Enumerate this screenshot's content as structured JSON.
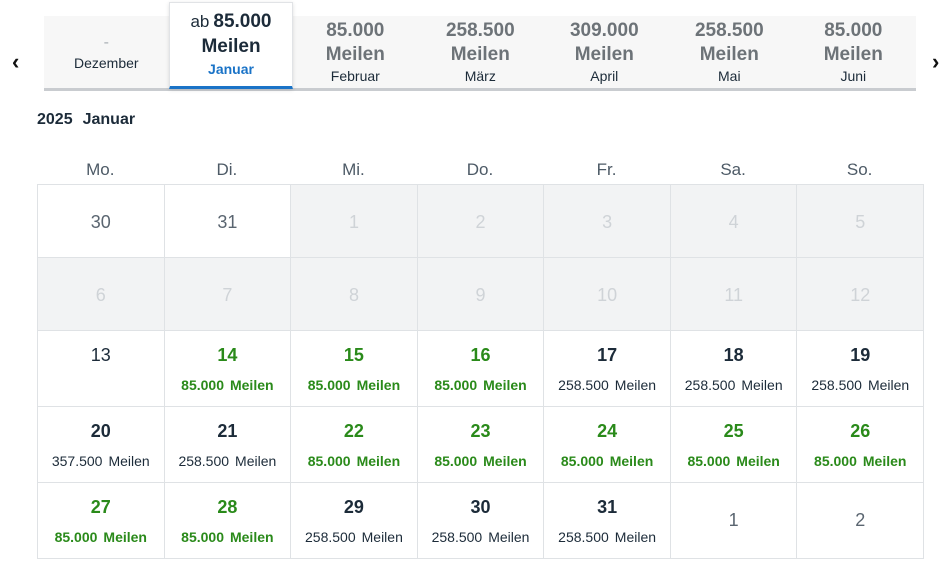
{
  "nav": {
    "prev_icon": "chevron-left-icon",
    "next_icon": "chevron-right-icon"
  },
  "tabs": {
    "dec": {
      "dash": "-",
      "month": "Dezember"
    },
    "jan": {
      "from": "ab",
      "price": "85.000",
      "unit": "Meilen",
      "month": "Januar"
    },
    "feb": {
      "price": "85.000",
      "unit": "Meilen",
      "month": "Februar"
    },
    "mar": {
      "price": "258.500",
      "unit": "Meilen",
      "month": "März"
    },
    "apr": {
      "price": "309.000",
      "unit": "Meilen",
      "month": "April"
    },
    "may": {
      "price": "258.500",
      "unit": "Meilen",
      "month": "Mai"
    },
    "jun": {
      "price": "85.000",
      "unit": "Meilen",
      "month": "Juni"
    }
  },
  "heading": {
    "year": "2025",
    "month": "Januar"
  },
  "weekdays": [
    "Mo.",
    "Di.",
    "Mi.",
    "Do.",
    "Fr.",
    "Sa.",
    "So."
  ],
  "unit": "Meilen",
  "calendar": {
    "r1": [
      "30",
      "31",
      "1",
      "2",
      "3",
      "4",
      "5"
    ],
    "r2": [
      "6",
      "7",
      "8",
      "9",
      "10",
      "11",
      "12"
    ],
    "r3": [
      {
        "day": "13"
      },
      {
        "day": "14",
        "miles": "85.000"
      },
      {
        "day": "15",
        "miles": "85.000"
      },
      {
        "day": "16",
        "miles": "85.000"
      },
      {
        "day": "17",
        "miles": "258.500"
      },
      {
        "day": "18",
        "miles": "258.500"
      },
      {
        "day": "19",
        "miles": "258.500"
      }
    ],
    "r4": [
      {
        "day": "20",
        "miles": "357.500"
      },
      {
        "day": "21",
        "miles": "258.500"
      },
      {
        "day": "22",
        "miles": "85.000"
      },
      {
        "day": "23",
        "miles": "85.000"
      },
      {
        "day": "24",
        "miles": "85.000"
      },
      {
        "day": "25",
        "miles": "85.000"
      },
      {
        "day": "26",
        "miles": "85.000"
      }
    ],
    "r5": [
      {
        "day": "27",
        "miles": "85.000"
      },
      {
        "day": "28",
        "miles": "85.000"
      },
      {
        "day": "29",
        "miles": "258.500"
      },
      {
        "day": "30",
        "miles": "258.500"
      },
      {
        "day": "31",
        "miles": "258.500"
      },
      {
        "day": "1"
      },
      {
        "day": "2"
      }
    ]
  },
  "colors": {
    "accent_blue": "#1a73c7",
    "lowest_price_green": "#2a8a1a",
    "disabled_bg": "#f2f3f4"
  }
}
